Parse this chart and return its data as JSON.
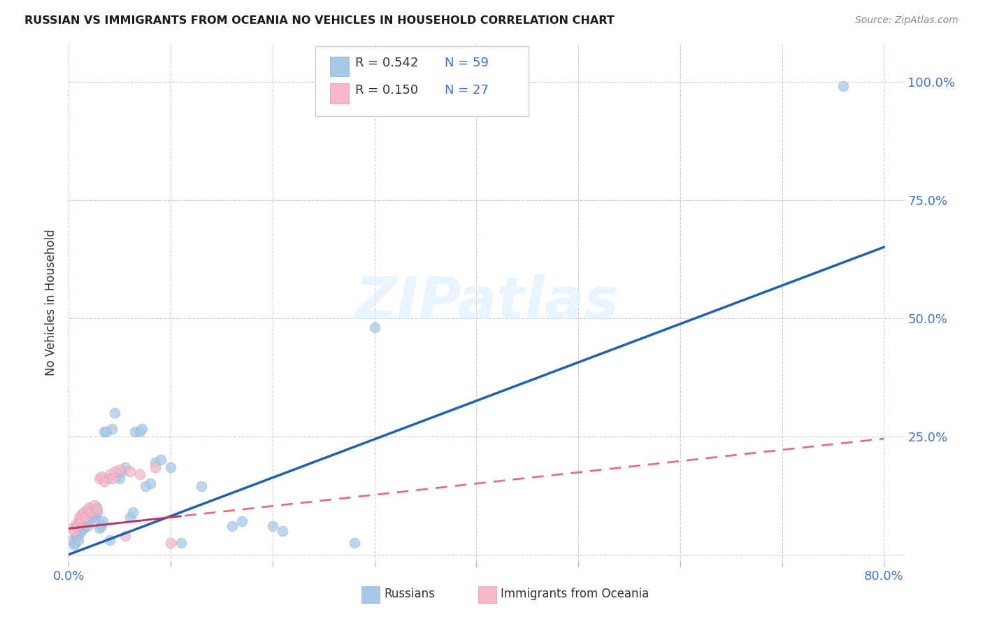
{
  "title": "RUSSIAN VS IMMIGRANTS FROM OCEANIA NO VEHICLES IN HOUSEHOLD CORRELATION CHART",
  "source": "Source: ZipAtlas.com",
  "ylabel": "No Vehicles in Household",
  "xlim": [
    0.0,
    0.82
  ],
  "ylim": [
    -0.015,
    1.08
  ],
  "legend_r1": "R = 0.542",
  "legend_n1": "N = 59",
  "legend_r2": "R = 0.150",
  "legend_n2": "N = 27",
  "blue_color": "#a8c8e8",
  "pink_color": "#f4b8c8",
  "trend_blue": "#2060b0",
  "trend_pink": "#e07080",
  "watermark": "ZIPatlas",
  "russians_x": [
    0.003,
    0.005,
    0.006,
    0.007,
    0.008,
    0.009,
    0.01,
    0.011,
    0.012,
    0.013,
    0.014,
    0.015,
    0.015,
    0.016,
    0.017,
    0.018,
    0.019,
    0.02,
    0.021,
    0.022,
    0.023,
    0.024,
    0.025,
    0.026,
    0.027,
    0.028,
    0.03,
    0.031,
    0.032,
    0.033,
    0.035,
    0.037,
    0.038,
    0.04,
    0.042,
    0.045,
    0.047,
    0.05,
    0.052,
    0.055,
    0.06,
    0.063,
    0.065,
    0.07,
    0.072,
    0.075,
    0.08,
    0.085,
    0.09,
    0.1,
    0.11,
    0.13,
    0.16,
    0.17,
    0.2,
    0.21,
    0.28,
    0.3,
    0.76
  ],
  "russians_y": [
    0.03,
    0.02,
    0.025,
    0.035,
    0.04,
    0.03,
    0.055,
    0.045,
    0.05,
    0.06,
    0.065,
    0.055,
    0.07,
    0.065,
    0.075,
    0.06,
    0.08,
    0.07,
    0.085,
    0.075,
    0.09,
    0.08,
    0.095,
    0.085,
    0.1,
    0.09,
    0.055,
    0.065,
    0.06,
    0.07,
    0.26,
    0.26,
    0.16,
    0.03,
    0.265,
    0.3,
    0.165,
    0.16,
    0.175,
    0.185,
    0.08,
    0.09,
    0.26,
    0.26,
    0.265,
    0.145,
    0.15,
    0.195,
    0.2,
    0.185,
    0.025,
    0.145,
    0.06,
    0.07,
    0.06,
    0.05,
    0.025,
    0.48,
    0.99
  ],
  "oceania_x": [
    0.003,
    0.005,
    0.007,
    0.008,
    0.01,
    0.011,
    0.012,
    0.013,
    0.015,
    0.016,
    0.018,
    0.02,
    0.022,
    0.025,
    0.028,
    0.03,
    0.032,
    0.035,
    0.04,
    0.043,
    0.045,
    0.05,
    0.055,
    0.06,
    0.07,
    0.085,
    0.1
  ],
  "oceania_y": [
    0.055,
    0.05,
    0.065,
    0.06,
    0.08,
    0.07,
    0.075,
    0.085,
    0.09,
    0.08,
    0.095,
    0.1,
    0.09,
    0.105,
    0.095,
    0.16,
    0.165,
    0.155,
    0.17,
    0.16,
    0.175,
    0.18,
    0.04,
    0.175,
    0.17,
    0.185,
    0.025
  ],
  "blue_line_x": [
    0.0,
    0.8
  ],
  "blue_line_y": [
    0.0,
    0.65
  ],
  "pink_line_x": [
    0.0,
    0.8
  ],
  "pink_line_y": [
    0.055,
    0.245
  ]
}
